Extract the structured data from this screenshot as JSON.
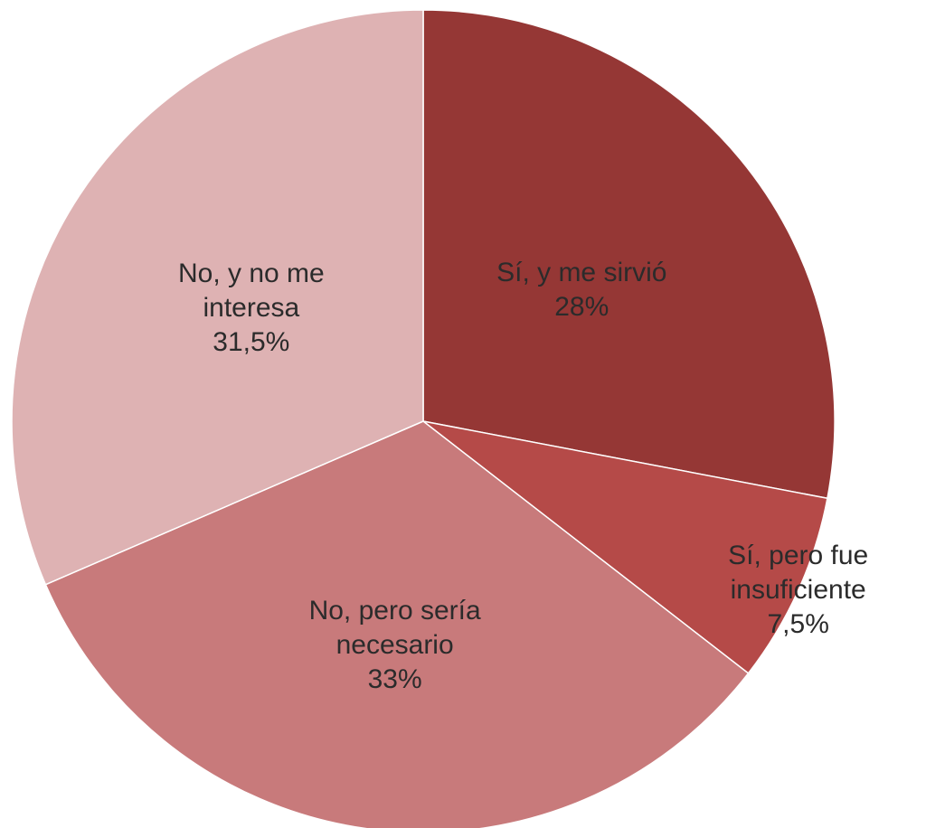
{
  "chart_data": {
    "type": "pie",
    "categories": [
      "Sí, y me sirvió",
      "Sí, pero fue insuficiente",
      "No, pero sería necesario",
      "No, y no me interesa"
    ],
    "values": [
      28,
      7.5,
      33,
      31.5
    ],
    "value_labels": [
      "28%",
      "7,5%",
      "33%",
      "31,5%"
    ],
    "colors": [
      "#953735",
      "#b54a48",
      "#c87a7b",
      "#deb2b3"
    ]
  }
}
